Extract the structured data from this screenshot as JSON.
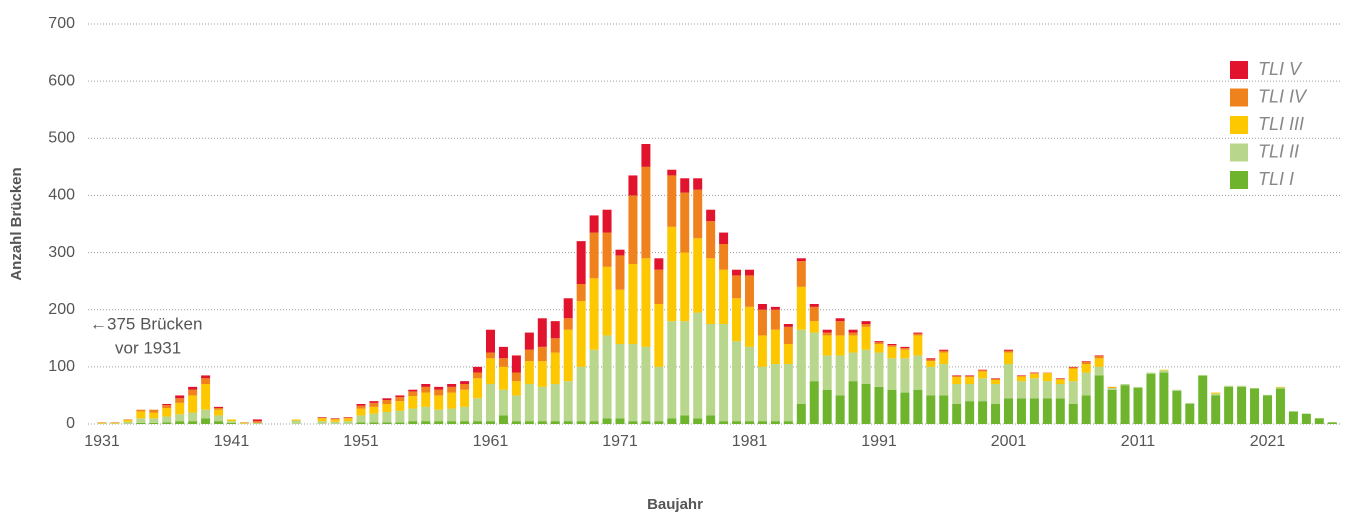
{
  "chart_data": {
    "type": "stacked_bar",
    "xlabel": "Baujahr",
    "ylabel": "Anzahl Brücken",
    "annotation": [
      "←375 Brücken",
      "vor 1931"
    ],
    "ylim": [
      0,
      700
    ],
    "yticks": [
      0,
      100,
      200,
      300,
      400,
      500,
      600,
      700
    ],
    "grid": true,
    "categories": [
      "1931",
      null,
      null,
      null,
      null,
      null,
      null,
      null,
      null,
      null,
      "1941",
      null,
      null,
      null,
      null,
      null,
      null,
      null,
      null,
      null,
      "1951",
      null,
      null,
      null,
      null,
      null,
      null,
      null,
      null,
      null,
      "1961",
      null,
      null,
      null,
      null,
      null,
      null,
      null,
      null,
      null,
      "1971",
      null,
      null,
      null,
      null,
      null,
      null,
      null,
      null,
      null,
      "1981",
      null,
      null,
      null,
      null,
      null,
      null,
      null,
      null,
      null,
      "1991",
      null,
      null,
      null,
      null,
      null,
      null,
      null,
      null,
      null,
      "2001",
      null,
      null,
      null,
      null,
      null,
      null,
      null,
      null,
      null,
      "2011",
      null,
      null,
      null,
      null,
      null,
      null,
      null,
      null,
      null,
      "2021",
      null,
      null,
      null,
      null,
      null
    ],
    "series": [
      {
        "name": "TLI I",
        "color": "#6eb42d",
        "values": [
          0,
          0,
          0,
          2,
          2,
          3,
          5,
          5,
          10,
          5,
          2,
          0,
          0,
          0,
          0,
          0,
          0,
          0,
          0,
          0,
          3,
          3,
          3,
          3,
          5,
          5,
          5,
          5,
          5,
          5,
          5,
          15,
          5,
          5,
          5,
          5,
          5,
          5,
          5,
          10,
          10,
          5,
          5,
          5,
          10,
          15,
          10,
          15,
          5,
          5,
          5,
          5,
          5,
          5,
          35,
          75,
          60,
          50,
          75,
          70,
          65,
          60,
          55,
          60,
          50,
          50,
          35,
          40,
          40,
          35,
          45,
          45,
          45,
          45,
          45,
          35,
          50,
          85,
          60,
          68,
          63,
          88,
          90,
          58,
          35,
          85,
          50,
          65,
          65,
          62,
          50,
          62,
          22,
          18,
          10,
          3
        ]
      },
      {
        "name": "TLI II",
        "color": "#b9d78c",
        "values": [
          1,
          1,
          4,
          8,
          8,
          10,
          12,
          15,
          15,
          10,
          3,
          1,
          2,
          0,
          0,
          6,
          0,
          5,
          4,
          5,
          12,
          15,
          18,
          20,
          22,
          25,
          20,
          22,
          25,
          40,
          65,
          45,
          45,
          65,
          60,
          65,
          70,
          95,
          125,
          145,
          130,
          135,
          130,
          95,
          170,
          165,
          185,
          160,
          170,
          140,
          130,
          95,
          100,
          100,
          130,
          85,
          60,
          70,
          50,
          60,
          60,
          55,
          60,
          60,
          50,
          55,
          35,
          30,
          40,
          35,
          60,
          30,
          35,
          30,
          25,
          40,
          40,
          15,
          3,
          2,
          2,
          2,
          4,
          2,
          2,
          0,
          3,
          2,
          2,
          1,
          1,
          2,
          0,
          0,
          0,
          0
        ]
      },
      {
        "name": "TLI III",
        "color": "#fdc800",
        "values": [
          1,
          1,
          3,
          12,
          10,
          15,
          20,
          30,
          45,
          10,
          3,
          1,
          0,
          0,
          0,
          2,
          0,
          5,
          4,
          5,
          12,
          12,
          14,
          17,
          22,
          25,
          25,
          28,
          30,
          35,
          45,
          40,
          25,
          40,
          45,
          55,
          90,
          115,
          125,
          120,
          95,
          140,
          155,
          110,
          165,
          120,
          130,
          115,
          95,
          75,
          70,
          55,
          60,
          35,
          75,
          20,
          35,
          35,
          30,
          40,
          15,
          20,
          15,
          35,
          10,
          20,
          12,
          12,
          12,
          7,
          20,
          8,
          8,
          14,
          8,
          22,
          15,
          15,
          1,
          0,
          0,
          0,
          1,
          0,
          0,
          0,
          2,
          0,
          0,
          0,
          0,
          1,
          0,
          0,
          0,
          0
        ]
      },
      {
        "name": "TLI IV",
        "color": "#f0821e",
        "values": [
          1,
          1,
          1,
          3,
          5,
          5,
          8,
          10,
          10,
          3,
          0,
          1,
          3,
          0,
          0,
          0,
          0,
          1,
          1,
          1,
          5,
          7,
          7,
          7,
          8,
          10,
          10,
          10,
          10,
          10,
          10,
          15,
          15,
          20,
          25,
          25,
          20,
          30,
          80,
          60,
          60,
          120,
          160,
          60,
          90,
          105,
          85,
          65,
          45,
          40,
          55,
          45,
          35,
          30,
          45,
          25,
          5,
          25,
          5,
          5,
          3,
          3,
          3,
          3,
          3,
          3,
          2,
          2,
          2,
          2,
          3,
          1,
          1,
          1,
          1,
          2,
          4,
          4,
          1,
          0,
          0,
          0,
          0,
          0,
          0,
          0,
          0,
          0,
          0,
          0,
          0,
          0,
          0,
          0,
          0,
          0
        ]
      },
      {
        "name": "TLI V",
        "color": "#e2142d",
        "values": [
          0,
          0,
          0,
          0,
          0,
          2,
          5,
          5,
          5,
          2,
          0,
          0,
          3,
          0,
          0,
          0,
          0,
          1,
          1,
          1,
          3,
          3,
          3,
          3,
          3,
          5,
          5,
          5,
          5,
          10,
          40,
          20,
          30,
          30,
          50,
          30,
          35,
          75,
          30,
          40,
          10,
          35,
          40,
          20,
          10,
          25,
          20,
          20,
          20,
          10,
          10,
          10,
          5,
          5,
          5,
          5,
          5,
          5,
          5,
          5,
          2,
          2,
          2,
          2,
          2,
          2,
          1,
          1,
          1,
          1,
          2,
          1,
          1,
          0,
          1,
          1,
          1,
          1,
          0,
          0,
          0,
          0,
          0,
          0,
          0,
          0,
          0,
          0,
          0,
          0,
          0,
          0,
          0,
          0,
          0,
          0
        ]
      }
    ]
  }
}
